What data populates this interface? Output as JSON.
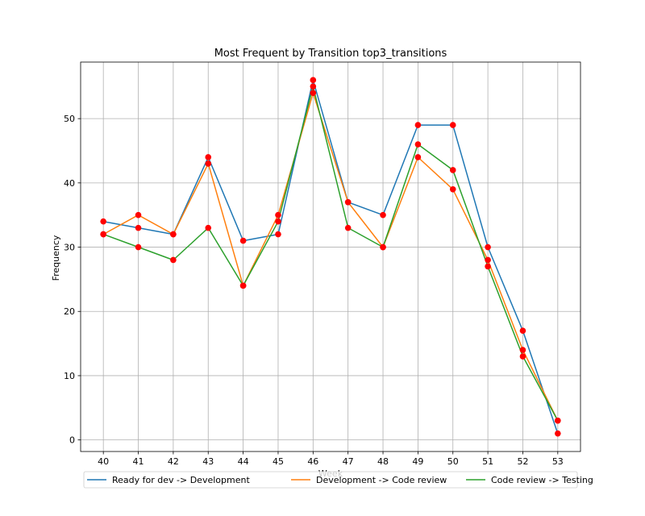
{
  "chart_data": {
    "type": "line",
    "title": "Most Frequent by Transition top3_transitions",
    "xlabel": "Week",
    "ylabel": "Frequency",
    "x": [
      40,
      41,
      42,
      43,
      44,
      45,
      46,
      47,
      48,
      49,
      50,
      51,
      52,
      53
    ],
    "xlim": [
      39.35,
      53.65
    ],
    "ylim": [
      -1.8,
      58.8
    ],
    "yticks": [
      0,
      10,
      20,
      30,
      40,
      50
    ],
    "grid": true,
    "legend_position": "bottom-center",
    "marker_color": "#ff0000",
    "series": [
      {
        "name": "Ready for dev -> Development",
        "color": "#1f77b4",
        "values": [
          34,
          33,
          32,
          44,
          31,
          32,
          56,
          37,
          35,
          49,
          49,
          30,
          17,
          1
        ]
      },
      {
        "name": "Development -> Code review",
        "color": "#ff7f0e",
        "values": [
          32,
          35,
          32,
          43,
          24,
          35,
          54,
          37,
          30,
          44,
          39,
          28,
          14,
          3
        ]
      },
      {
        "name": "Code review -> Testing",
        "color": "#2ca02c",
        "values": [
          32,
          30,
          28,
          33,
          24,
          34,
          55,
          33,
          30,
          46,
          42,
          27,
          13,
          3
        ]
      }
    ]
  }
}
